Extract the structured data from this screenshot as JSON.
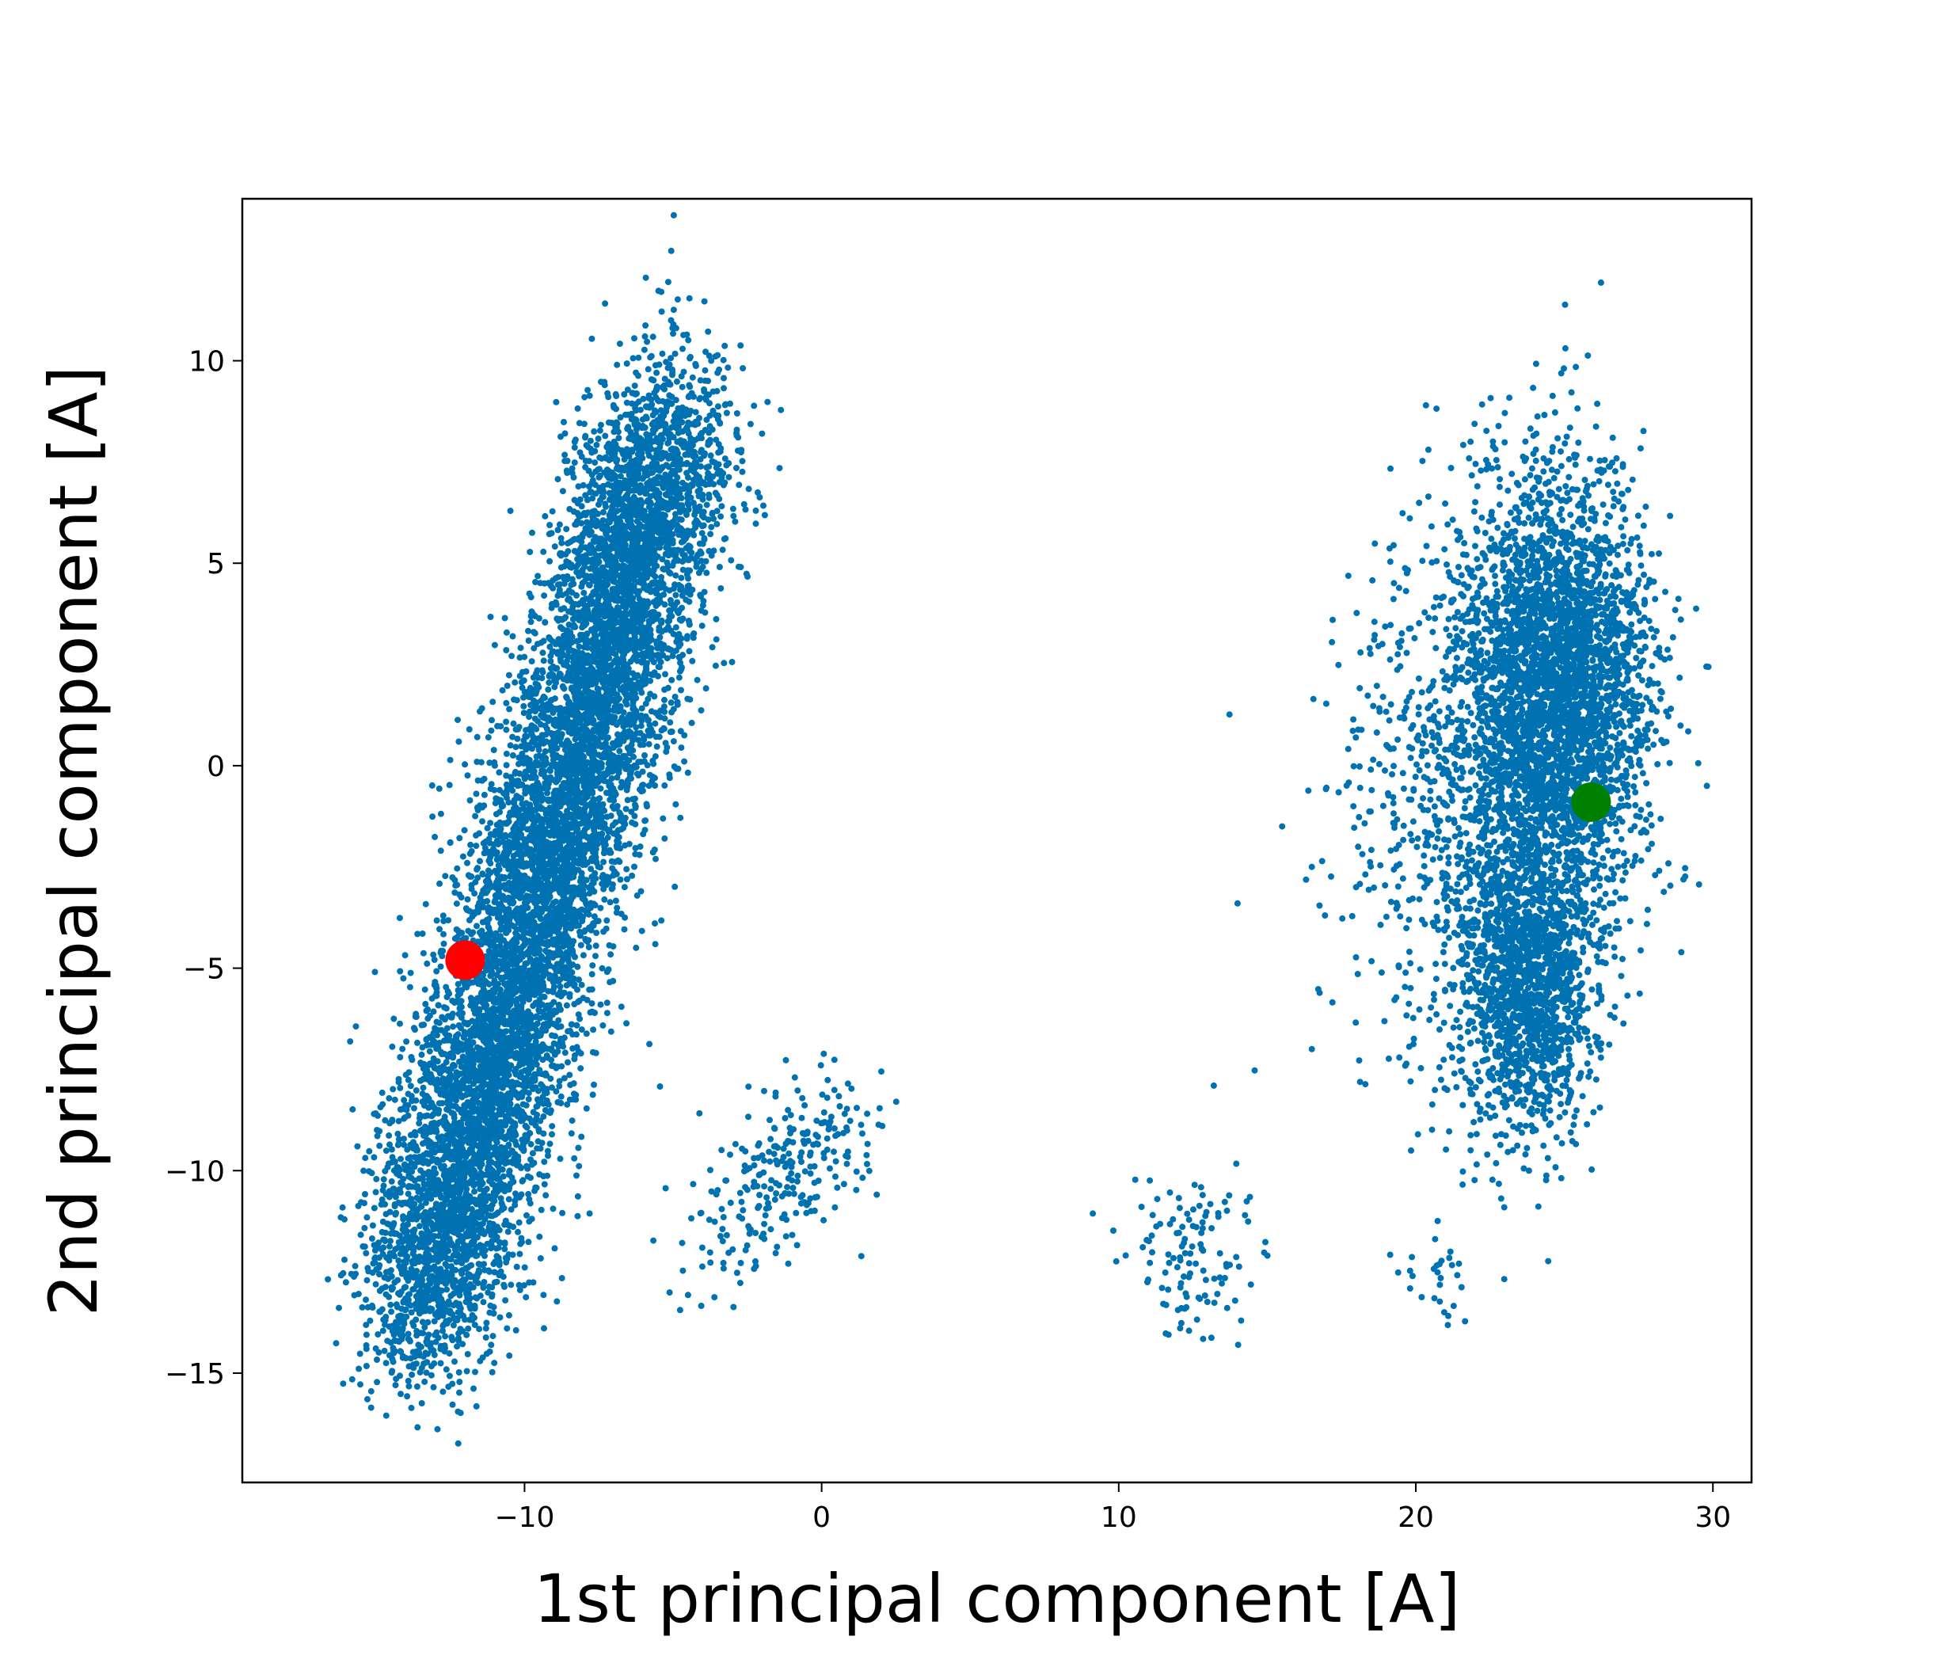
{
  "chart_data": {
    "type": "scatter",
    "xlabel": "1st principal component [A]",
    "ylabel": "2nd principal component [A]",
    "xlim": [
      -19.5,
      31.3
    ],
    "ylim": [
      -17.7,
      14.0
    ],
    "xticks": [
      -10,
      0,
      10,
      20,
      30
    ],
    "yticks": [
      -15,
      -10,
      -5,
      0,
      5,
      10
    ],
    "xtick_labels": [
      "−10",
      "0",
      "10",
      "20",
      "30"
    ],
    "ytick_labels": [
      "−15",
      "−10",
      "−5",
      "0",
      "5",
      "10"
    ],
    "grid": false,
    "legend": "none",
    "colors": {
      "points": "#0072b2",
      "red_marker": "#ff0000",
      "green_marker": "#008000"
    },
    "clusters": [
      {
        "description": "left elongated cluster",
        "center": [
          -8.0,
          -2.0
        ],
        "approx_extent": {
          "x": [
            -17,
            -1
          ],
          "y": [
            -16.5,
            12.5
          ]
        }
      },
      {
        "description": "right cluster",
        "center": [
          24.5,
          -0.5
        ],
        "approx_extent": {
          "x": [
            17,
            29
          ],
          "y": [
            -10,
            7.6
          ]
        }
      }
    ],
    "highlighted_points": [
      {
        "color": "red",
        "x": -12.0,
        "y": -4.8
      },
      {
        "color": "green",
        "x": 25.9,
        "y": -0.9
      }
    ]
  }
}
